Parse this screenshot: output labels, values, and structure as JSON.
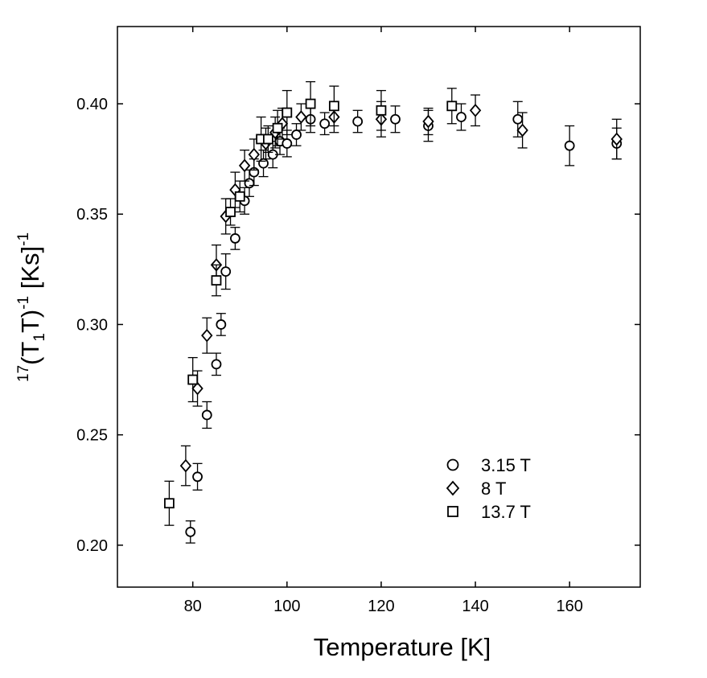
{
  "chart_data": {
    "type": "scatter",
    "xlabel": "Temperature [K]",
    "ylabel": {
      "prefix": "17",
      "open": "(T",
      "sub": "1",
      "close": "T)",
      "exp": "-1",
      "units": " [Ks]",
      "units_exp": "-1"
    },
    "xlim": [
      64,
      175
    ],
    "ylim": [
      0.181,
      0.435
    ],
    "xticks": [
      "80",
      "100",
      "120",
      "140",
      "160"
    ],
    "xtick_values": [
      80,
      100,
      120,
      140,
      160
    ],
    "yticks": [
      "0.20",
      "0.25",
      "0.30",
      "0.35",
      "0.40"
    ],
    "ytick_values": [
      0.2,
      0.25,
      0.3,
      0.35,
      0.4
    ],
    "grid": false,
    "legend_position": "bottom-right",
    "series": [
      {
        "name": "3.15 T",
        "marker": "circle",
        "points": [
          [
            79.5,
            0.206,
            0.005
          ],
          [
            81,
            0.231,
            0.006
          ],
          [
            83,
            0.259,
            0.006
          ],
          [
            85,
            0.282,
            0.005
          ],
          [
            86,
            0.3,
            0.005
          ],
          [
            87,
            0.324,
            0.008
          ],
          [
            89,
            0.339,
            0.005
          ],
          [
            91,
            0.356,
            0.006
          ],
          [
            92,
            0.364,
            0.006
          ],
          [
            93,
            0.369,
            0.006
          ],
          [
            95,
            0.373,
            0.006
          ],
          [
            97,
            0.377,
            0.006
          ],
          [
            98.5,
            0.383,
            0.006
          ],
          [
            100,
            0.382,
            0.006
          ],
          [
            102,
            0.386,
            0.005
          ],
          [
            105,
            0.393,
            0.006
          ],
          [
            108,
            0.391,
            0.005
          ],
          [
            115,
            0.392,
            0.005
          ],
          [
            123,
            0.393,
            0.006
          ],
          [
            130,
            0.39,
            0.007
          ],
          [
            137,
            0.394,
            0.006
          ],
          [
            149,
            0.393,
            0.008
          ],
          [
            160,
            0.381,
            0.009
          ],
          [
            170,
            0.382,
            0.007
          ]
        ]
      },
      {
        "name": "8 T",
        "marker": "diamond",
        "points": [
          [
            78.5,
            0.236,
            0.009
          ],
          [
            81,
            0.271,
            0.008
          ],
          [
            83,
            0.295,
            0.008
          ],
          [
            85,
            0.327,
            0.009
          ],
          [
            87,
            0.349,
            0.008
          ],
          [
            89,
            0.361,
            0.008
          ],
          [
            91,
            0.372,
            0.007
          ],
          [
            93,
            0.377,
            0.007
          ],
          [
            95.5,
            0.382,
            0.007
          ],
          [
            97.5,
            0.387,
            0.007
          ],
          [
            99,
            0.391,
            0.007
          ],
          [
            103,
            0.394,
            0.006
          ],
          [
            110,
            0.394,
            0.007
          ],
          [
            120,
            0.393,
            0.008
          ],
          [
            130,
            0.392,
            0.006
          ],
          [
            140,
            0.397,
            0.007
          ],
          [
            150,
            0.388,
            0.008
          ],
          [
            170,
            0.384,
            0.009
          ]
        ]
      },
      {
        "name": "13.7 T",
        "marker": "square",
        "points": [
          [
            75,
            0.219,
            0.01
          ],
          [
            80,
            0.275,
            0.01
          ],
          [
            85,
            0.32,
            0.007
          ],
          [
            88,
            0.351,
            0.006
          ],
          [
            90,
            0.358,
            0.007
          ],
          [
            94.5,
            0.384,
            0.01
          ],
          [
            96,
            0.384,
            0.006
          ],
          [
            98,
            0.389,
            0.008
          ],
          [
            100,
            0.396,
            0.01
          ],
          [
            105,
            0.4,
            0.01
          ],
          [
            110,
            0.399,
            0.009
          ],
          [
            120,
            0.397,
            0.009
          ],
          [
            135,
            0.399,
            0.008
          ]
        ]
      }
    ]
  }
}
